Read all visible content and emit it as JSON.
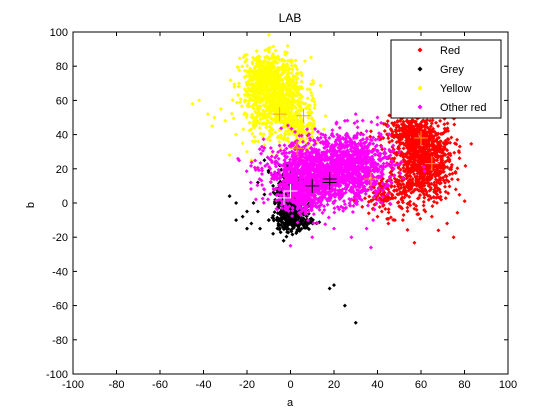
{
  "chart_data": {
    "type": "scatter",
    "title": "LAB",
    "xlabel": "a",
    "ylabel": "b",
    "xlim": [
      -100,
      100
    ],
    "ylim": [
      -100,
      100
    ],
    "xticks": [
      -100,
      -80,
      -60,
      -40,
      -20,
      0,
      20,
      40,
      60,
      80,
      100
    ],
    "yticks": [
      -100,
      -80,
      -60,
      -40,
      -20,
      0,
      20,
      40,
      60,
      80,
      100
    ],
    "grid": false,
    "legend": "top-right",
    "series": [
      {
        "name": "Red",
        "color": "#ff0000",
        "marker": "diamond",
        "clusters": [
          {
            "center": [
              61,
              25
            ],
            "spread": [
              7,
              12
            ],
            "count": 900
          },
          {
            "center": [
              55,
              40
            ],
            "spread": [
              6,
              5
            ],
            "count": 250
          },
          {
            "center": [
              45,
              5
            ],
            "spread": [
              6,
              6
            ],
            "count": 150
          }
        ],
        "points": [
          [
            40,
            -8
          ],
          [
            45,
            -12
          ],
          [
            52,
            -7
          ],
          [
            58,
            -4
          ],
          [
            65,
            -8
          ],
          [
            72,
            -12
          ],
          [
            75,
            -20
          ],
          [
            68,
            -16
          ],
          [
            62,
            -5
          ],
          [
            42,
            -5
          ],
          [
            50,
            -2
          ],
          [
            48,
            -10
          ],
          [
            36,
            -6
          ],
          [
            76,
            8
          ],
          [
            38,
            2
          ]
        ]
      },
      {
        "name": "Grey",
        "color": "#000000",
        "marker": "diamond",
        "clusters": [
          {
            "center": [
              0,
              2
            ],
            "spread": [
              3,
              8
            ],
            "count": 700
          },
          {
            "center": [
              2,
              -10
            ],
            "spread": [
              4,
              3
            ],
            "count": 150
          }
        ],
        "points": [
          [
            -20,
            -5
          ],
          [
            -22,
            -8
          ],
          [
            -18,
            -12
          ],
          [
            -25,
            0
          ],
          [
            -15,
            -5
          ],
          [
            -12,
            5
          ],
          [
            -10,
            -10
          ],
          [
            -14,
            -15
          ],
          [
            -8,
            -18
          ],
          [
            -25,
            -10
          ],
          [
            -20,
            -15
          ],
          [
            -28,
            4
          ],
          [
            -17,
            0
          ],
          [
            -12,
            25
          ],
          [
            -15,
            12
          ],
          [
            -5,
            22
          ],
          [
            -10,
            18
          ],
          [
            -3,
            15
          ],
          [
            -8,
            10
          ],
          [
            18,
            -50
          ],
          [
            20,
            -48
          ],
          [
            25,
            -60
          ],
          [
            30,
            -70
          ]
        ]
      },
      {
        "name": "Yellow",
        "color": "#ffff00",
        "marker": "diamond",
        "clusters": [
          {
            "center": [
              -7,
              62
            ],
            "spread": [
              7,
              11
            ],
            "count": 950
          },
          {
            "center": [
              -12,
              75
            ],
            "spread": [
              5,
              6
            ],
            "count": 250
          },
          {
            "center": [
              3,
              42
            ],
            "spread": [
              4,
              6
            ],
            "count": 150
          }
        ],
        "points": [
          [
            -42,
            60
          ],
          [
            -45,
            58
          ],
          [
            -38,
            52
          ],
          [
            -35,
            50
          ],
          [
            -30,
            48
          ],
          [
            -25,
            40
          ],
          [
            -20,
            30
          ],
          [
            -22,
            35
          ],
          [
            -18,
            25
          ],
          [
            -15,
            20
          ],
          [
            -28,
            28
          ],
          [
            -36,
            45
          ],
          [
            -32,
            55
          ]
        ]
      },
      {
        "name": "Other red",
        "color": "#ff00ff",
        "marker": "diamond",
        "clusters": [
          {
            "center": [
              15,
              18
            ],
            "spread": [
              13,
              9
            ],
            "count": 1500
          },
          {
            "center": [
              30,
              25
            ],
            "spread": [
              8,
              9
            ],
            "count": 450
          },
          {
            "center": [
              5,
              5
            ],
            "spread": [
              5,
              6
            ],
            "count": 300
          }
        ],
        "points": [
          [
            40,
            50
          ],
          [
            45,
            45
          ],
          [
            30,
            52
          ],
          [
            25,
            48
          ],
          [
            35,
            42
          ],
          [
            38,
            -10
          ],
          [
            35,
            -15
          ],
          [
            37,
            -26
          ],
          [
            28,
            -20
          ],
          [
            20,
            -15
          ],
          [
            42,
            0
          ],
          [
            45,
            10
          ],
          [
            10,
            -20
          ],
          [
            0,
            -25
          ],
          [
            15,
            35
          ],
          [
            50,
            30
          ]
        ]
      }
    ],
    "markers": [
      {
        "color": "#ffa500",
        "points": [
          [
            -5,
            52
          ],
          [
            6,
            51
          ],
          [
            60,
            38
          ],
          [
            65,
            23
          ],
          [
            37,
            14
          ],
          [
            3,
            32
          ]
        ]
      },
      {
        "color": "#000000",
        "points": [
          [
            10,
            10
          ],
          [
            18,
            14
          ],
          [
            18,
            12
          ]
        ]
      },
      {
        "color": "#ffffff",
        "points": [
          [
            0,
            7
          ],
          [
            -3,
            3
          ]
        ]
      }
    ]
  }
}
